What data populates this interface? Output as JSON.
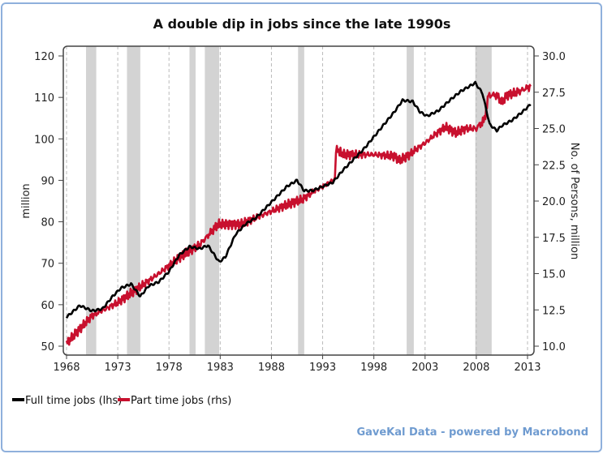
{
  "chart_data": {
    "type": "line",
    "title": "A double dip in jobs since the late 1990s",
    "xlabel": "",
    "ylabel": "million",
    "ylabel_right": "No. of Persons, million",
    "xlim": [
      1968,
      2013.4
    ],
    "ylim": [
      50,
      120
    ],
    "ylim_right": [
      10.0,
      30.0
    ],
    "x_ticks": [
      "1968",
      "1973",
      "1978",
      "1983",
      "1988",
      "1993",
      "1998",
      "2003",
      "2008",
      "2013"
    ],
    "y_ticks": [
      "50",
      "60",
      "70",
      "80",
      "90",
      "100",
      "110",
      "120"
    ],
    "y_ticks_right": [
      "10.0",
      "12.5",
      "15.0",
      "17.5",
      "20.0",
      "22.5",
      "25.0",
      "27.5",
      "30.0"
    ],
    "grid": "vertical dashed at x ticks",
    "recessions": [
      [
        1969.9,
        1970.9
      ],
      [
        1973.9,
        1975.2
      ],
      [
        1980.0,
        1980.6
      ],
      [
        1981.5,
        1982.9
      ],
      [
        1990.6,
        1991.2
      ],
      [
        2001.2,
        2001.9
      ],
      [
        2007.9,
        2009.5
      ]
    ],
    "legend_position": "bottom-left",
    "series": [
      {
        "name": "Full time jobs (lhs)",
        "axis": "left",
        "color": "#000000",
        "points": [
          [
            1968,
            57
          ],
          [
            1969.3,
            59.8
          ],
          [
            1970.5,
            58.5
          ],
          [
            1971.5,
            59
          ],
          [
            1972.5,
            62
          ],
          [
            1973.3,
            64
          ],
          [
            1974.3,
            65
          ],
          [
            1975.2,
            62
          ],
          [
            1976,
            64.5
          ],
          [
            1977,
            65.5
          ],
          [
            1978,
            68
          ],
          [
            1979,
            72
          ],
          [
            1980,
            74
          ],
          [
            1981,
            73.5
          ],
          [
            1981.8,
            74.3
          ],
          [
            1982.9,
            70.3
          ],
          [
            1983.5,
            71.5
          ],
          [
            1984.5,
            77
          ],
          [
            1985.5,
            79.5
          ],
          [
            1986.5,
            81
          ],
          [
            1987.5,
            83.5
          ],
          [
            1988.5,
            86
          ],
          [
            1989.5,
            88.5
          ],
          [
            1990.5,
            90
          ],
          [
            1991.2,
            87.5
          ],
          [
            1992,
            87.5
          ],
          [
            1993,
            88.5
          ],
          [
            1994,
            89.5
          ],
          [
            1995,
            92.5
          ],
          [
            1996,
            95
          ],
          [
            1997,
            97.5
          ],
          [
            1998,
            100.5
          ],
          [
            1999,
            103.5
          ],
          [
            2000,
            106.5
          ],
          [
            2000.8,
            109.3
          ],
          [
            2001.8,
            109
          ],
          [
            2002.5,
            106.5
          ],
          [
            2003.2,
            105.5
          ],
          [
            2004.3,
            106.8
          ],
          [
            2005.5,
            109.5
          ],
          [
            2006.5,
            111.5
          ],
          [
            2007.9,
            113.5
          ],
          [
            2008.6,
            111
          ],
          [
            2009.3,
            103.5
          ],
          [
            2010,
            102
          ],
          [
            2010.5,
            103.2
          ],
          [
            2011.5,
            104.5
          ],
          [
            2012.5,
            106.5
          ],
          [
            2013.3,
            108.3
          ]
        ]
      },
      {
        "name": "Part time jobs (rhs)",
        "axis": "right",
        "color": "#c8102e",
        "points": [
          [
            1968,
            10.2
          ],
          [
            1970.5,
            12.1
          ],
          [
            1973,
            13.0
          ],
          [
            1975,
            14.0
          ],
          [
            1977,
            15.0
          ],
          [
            1979,
            16.1
          ],
          [
            1981,
            17.0
          ],
          [
            1982.8,
            18.4
          ],
          [
            1985,
            18.4
          ],
          [
            1987,
            19.0
          ],
          [
            1989,
            19.6
          ],
          [
            1990.5,
            20.0
          ],
          [
            1991,
            20.1
          ],
          [
            1992,
            20.6
          ],
          [
            1993,
            21.0
          ],
          [
            1994.2,
            21.5
          ],
          [
            1994.3,
            23.6
          ],
          [
            1995,
            23.2
          ],
          [
            1998,
            23.2
          ],
          [
            2000,
            23.1
          ],
          [
            2000.5,
            22.8
          ],
          [
            2001.5,
            23.2
          ],
          [
            2002,
            23.5
          ],
          [
            2003,
            24.0
          ],
          [
            2004,
            24.6
          ],
          [
            2005,
            25.1
          ],
          [
            2006,
            24.7
          ],
          [
            2007,
            25.0
          ],
          [
            2008,
            25.0
          ],
          [
            2008.8,
            25.6
          ],
          [
            2009.2,
            27.3
          ],
          [
            2010,
            27.3
          ],
          [
            2010.5,
            26.8
          ],
          [
            2011,
            27.3
          ],
          [
            2012,
            27.5
          ],
          [
            2013.3,
            27.9
          ]
        ]
      }
    ]
  },
  "footer": "GaveKal Data - powered by Macrobond"
}
